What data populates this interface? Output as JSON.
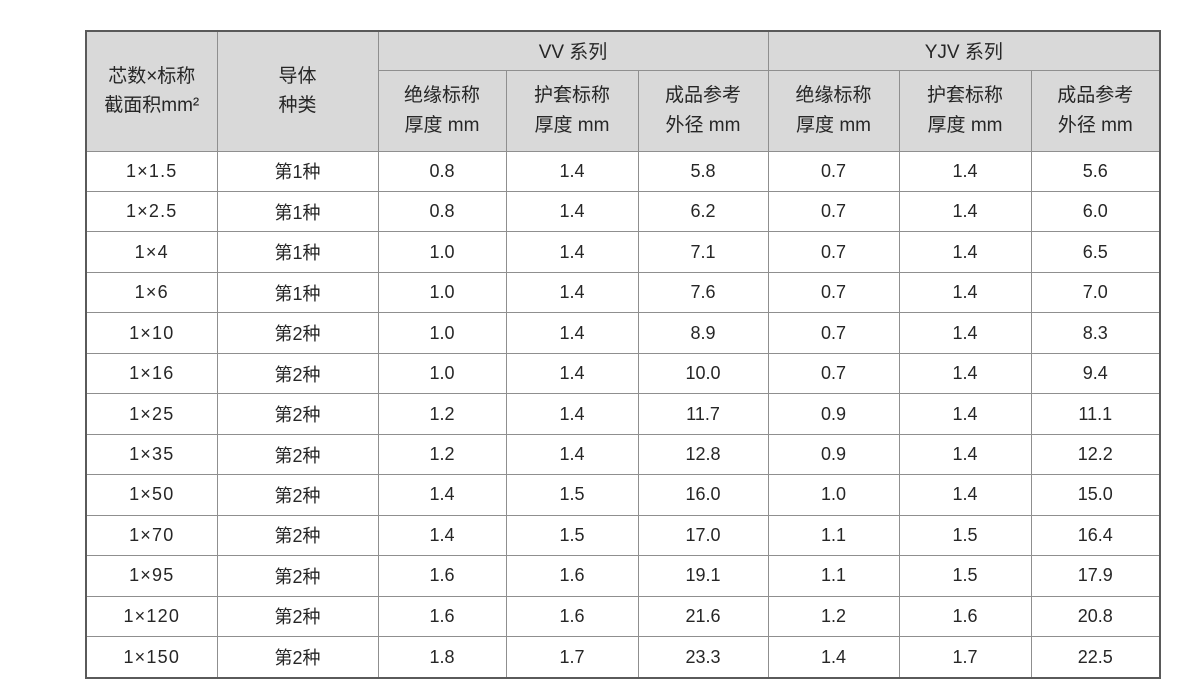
{
  "page": {
    "background": "#ffffff"
  },
  "table": {
    "header_bg": "#d9d9d9",
    "border_color": "#8f8f8f",
    "col1": {
      "line1": "芯数×标称",
      "line2": "截面积mm²"
    },
    "col2": {
      "line1": "导体",
      "line2": "种类"
    },
    "groups": [
      {
        "label": "VV 系列",
        "columns": [
          {
            "line1": "绝缘标称",
            "line2": "厚度 mm"
          },
          {
            "line1": "护套标称",
            "line2": "厚度 mm"
          },
          {
            "line1": "成品参考",
            "line2": "外径 mm"
          }
        ]
      },
      {
        "label": "YJV 系列",
        "columns": [
          {
            "line1": "绝缘标称",
            "line2": "厚度 mm"
          },
          {
            "line1": "护套标称",
            "line2": "厚度 mm"
          },
          {
            "line1": "成品参考",
            "line2": "外径 mm"
          }
        ]
      }
    ],
    "rows": [
      {
        "spec": "1×1.5",
        "conductor": "第1种",
        "vv": [
          "0.8",
          "1.4",
          "5.8"
        ],
        "yjv": [
          "0.7",
          "1.4",
          "5.6"
        ]
      },
      {
        "spec": "1×2.5",
        "conductor": "第1种",
        "vv": [
          "0.8",
          "1.4",
          "6.2"
        ],
        "yjv": [
          "0.7",
          "1.4",
          "6.0"
        ]
      },
      {
        "spec": "1×4",
        "conductor": "第1种",
        "vv": [
          "1.0",
          "1.4",
          "7.1"
        ],
        "yjv": [
          "0.7",
          "1.4",
          "6.5"
        ]
      },
      {
        "spec": "1×6",
        "conductor": "第1种",
        "vv": [
          "1.0",
          "1.4",
          "7.6"
        ],
        "yjv": [
          "0.7",
          "1.4",
          "7.0"
        ]
      },
      {
        "spec": "1×10",
        "conductor": "第2种",
        "vv": [
          "1.0",
          "1.4",
          "8.9"
        ],
        "yjv": [
          "0.7",
          "1.4",
          "8.3"
        ]
      },
      {
        "spec": "1×16",
        "conductor": "第2种",
        "vv": [
          "1.0",
          "1.4",
          "10.0"
        ],
        "yjv": [
          "0.7",
          "1.4",
          "9.4"
        ]
      },
      {
        "spec": "1×25",
        "conductor": "第2种",
        "vv": [
          "1.2",
          "1.4",
          "11.7"
        ],
        "yjv": [
          "0.9",
          "1.4",
          "11.1"
        ]
      },
      {
        "spec": "1×35",
        "conductor": "第2种",
        "vv": [
          "1.2",
          "1.4",
          "12.8"
        ],
        "yjv": [
          "0.9",
          "1.4",
          "12.2"
        ]
      },
      {
        "spec": "1×50",
        "conductor": "第2种",
        "vv": [
          "1.4",
          "1.5",
          "16.0"
        ],
        "yjv": [
          "1.0",
          "1.4",
          "15.0"
        ]
      },
      {
        "spec": "1×70",
        "conductor": "第2种",
        "vv": [
          "1.4",
          "1.5",
          "17.0"
        ],
        "yjv": [
          "1.1",
          "1.5",
          "16.4"
        ]
      },
      {
        "spec": "1×95",
        "conductor": "第2种",
        "vv": [
          "1.6",
          "1.6",
          "19.1"
        ],
        "yjv": [
          "1.1",
          "1.5",
          "17.9"
        ]
      },
      {
        "spec": "1×120",
        "conductor": "第2种",
        "vv": [
          "1.6",
          "1.6",
          "21.6"
        ],
        "yjv": [
          "1.2",
          "1.6",
          "20.8"
        ]
      },
      {
        "spec": "1×150",
        "conductor": "第2种",
        "vv": [
          "1.8",
          "1.7",
          "23.3"
        ],
        "yjv": [
          "1.4",
          "1.7",
          "22.5"
        ]
      }
    ]
  }
}
